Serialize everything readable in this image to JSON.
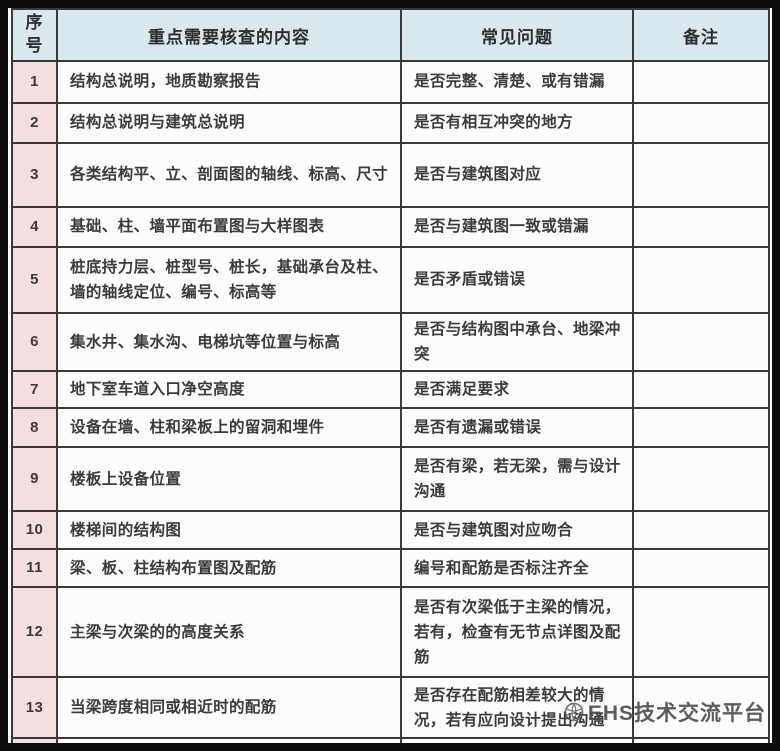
{
  "table": {
    "headers": [
      "序号",
      "重点需要核查的内容",
      "常见问题",
      "备注"
    ],
    "rows": [
      {
        "no": "1",
        "content": "结构总说明，地质勘察报告",
        "problem": "是否完整、清楚、或有错漏",
        "remark": ""
      },
      {
        "no": "2",
        "content": "结构总说明与建筑总说明",
        "problem": "是否有相互冲突的地方",
        "remark": ""
      },
      {
        "no": "3",
        "content": "各类结构平、立、剖面图的轴线、标高、尺寸",
        "problem": "是否与建筑图对应",
        "remark": ""
      },
      {
        "no": "4",
        "content": "基础、柱、墙平面布置图与大样图表",
        "problem": "是否与建筑图一致或错漏",
        "remark": ""
      },
      {
        "no": "5",
        "content": "桩底持力层、桩型号、桩长，基础承台及柱、墙的轴线定位、编号、标高等",
        "problem": "是否矛盾或错误",
        "remark": ""
      },
      {
        "no": "6",
        "content": "集水井、集水沟、电梯坑等位置与标高",
        "problem": "是否与结构图中承台、地梁冲突",
        "remark": ""
      },
      {
        "no": "7",
        "content": "地下室车道入口净空高度",
        "problem": "是否满足要求",
        "remark": ""
      },
      {
        "no": "8",
        "content": "设备在墙、柱和梁板上的留洞和埋件",
        "problem": "是否有遗漏或错误",
        "remark": ""
      },
      {
        "no": "9",
        "content": "楼板上设备位置",
        "problem": "是否有梁，若无梁，需与设计沟通",
        "remark": ""
      },
      {
        "no": "10",
        "content": "楼梯间的结构图",
        "problem": "是否与建筑图对应吻合",
        "remark": ""
      },
      {
        "no": "11",
        "content": "梁、板、柱结构布置图及配筋",
        "problem": "编号和配筋是否标注齐全",
        "remark": ""
      },
      {
        "no": "12",
        "content": "主梁与次梁的的高度关系",
        "problem": "是否有次梁低于主梁的情况，若有，检查有无节点详图及配筋",
        "remark": ""
      },
      {
        "no": "13",
        "content": "当梁跨度相同或相近时的配筋",
        "problem": "是否存在配筋相差较大的情况，若有应向设计提出沟通",
        "remark": ""
      }
    ]
  },
  "watermark": {
    "text": "EHS技术交流平台",
    "icon": "ehs-logo-icon"
  },
  "colors": {
    "header_bg": "#d9e8ef",
    "index_bg": "#f5dee0",
    "border": "#3a3a3a",
    "frame": "#0d0d0d"
  }
}
